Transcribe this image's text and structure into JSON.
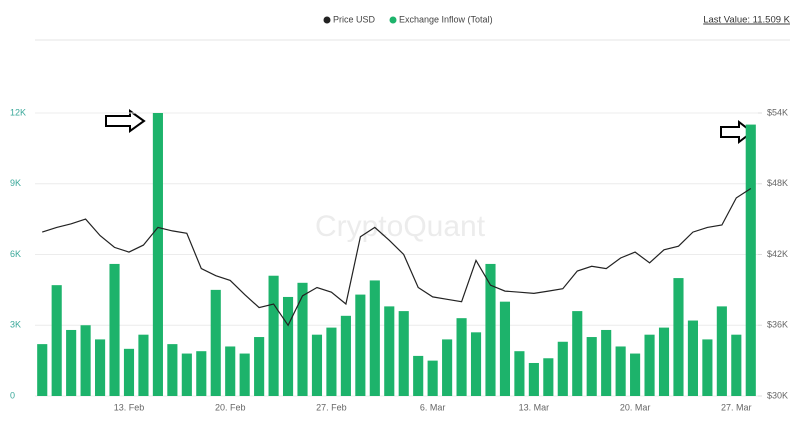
{
  "chart_data": {
    "type": "bar",
    "legend_items_note_free": true,
    "watermark": "CryptoQuant",
    "last_value_label": "Last Value: 11.509 K",
    "categories": [
      null,
      null,
      null,
      null,
      null,
      null,
      "13. Feb",
      null,
      null,
      null,
      null,
      null,
      null,
      "20. Feb",
      null,
      null,
      null,
      null,
      null,
      null,
      "27. Feb",
      null,
      null,
      null,
      null,
      null,
      null,
      "6. Mar",
      null,
      null,
      null,
      null,
      null,
      null,
      "13. Mar",
      null,
      null,
      null,
      null,
      null,
      null,
      "20. Mar",
      null,
      null,
      null,
      null,
      null,
      null,
      "27. Mar",
      null
    ],
    "series": [
      {
        "name": "Price USD",
        "color": "#222222",
        "type": "line",
        "axis": "y2",
        "values": [
          43900,
          44300,
          44600,
          45000,
          43600,
          42600,
          42200,
          42800,
          44300,
          44000,
          43800,
          40800,
          40200,
          39800,
          38600,
          37500,
          37800,
          36000,
          38500,
          39200,
          38800,
          37800,
          43500,
          44300,
          43200,
          42000,
          39200,
          38400,
          38200,
          38000,
          41500,
          39400,
          38900,
          38800,
          38700,
          38900,
          39100,
          40600,
          41000,
          40800,
          41700,
          42200,
          41300,
          42400,
          42700,
          43900,
          44300,
          44500,
          46800,
          47600
        ]
      },
      {
        "name": "Exchange Inflow (Total)",
        "color": "#1db36b",
        "type": "bar",
        "values": [
          2200,
          4700,
          2800,
          3000,
          2400,
          5600,
          2000,
          2600,
          12000,
          2200,
          1800,
          1900,
          4500,
          2100,
          1800,
          2500,
          5100,
          4200,
          4800,
          2600,
          2900,
          3400,
          4300,
          4900,
          3800,
          3600,
          1700,
          1500,
          2400,
          3300,
          2700,
          5600,
          4000,
          1900,
          1400,
          1600,
          2300,
          3600,
          2500,
          2800,
          2100,
          1800,
          2600,
          2900,
          5000,
          3200,
          2400,
          3800,
          2600,
          11509
        ]
      }
    ],
    "ylim": [
      0,
      12000
    ],
    "yticks": [
      0,
      {
        "value": 3000,
        "label": "3K"
      },
      {
        "value": 6000,
        "label": "6K"
      },
      {
        "value": 9000,
        "label": "9K"
      },
      {
        "value": 12000,
        "label": "12K"
      }
    ],
    "y2lim": [
      30000,
      54000
    ],
    "y2ticks": [
      {
        "value": 30000,
        "label": "$30K"
      },
      {
        "value": 36000,
        "label": "$36K"
      },
      {
        "value": 42000,
        "label": "$42K"
      },
      {
        "value": 48000,
        "label": "$48K"
      },
      {
        "value": 54000,
        "label": "$54K"
      }
    ],
    "grid": true
  }
}
